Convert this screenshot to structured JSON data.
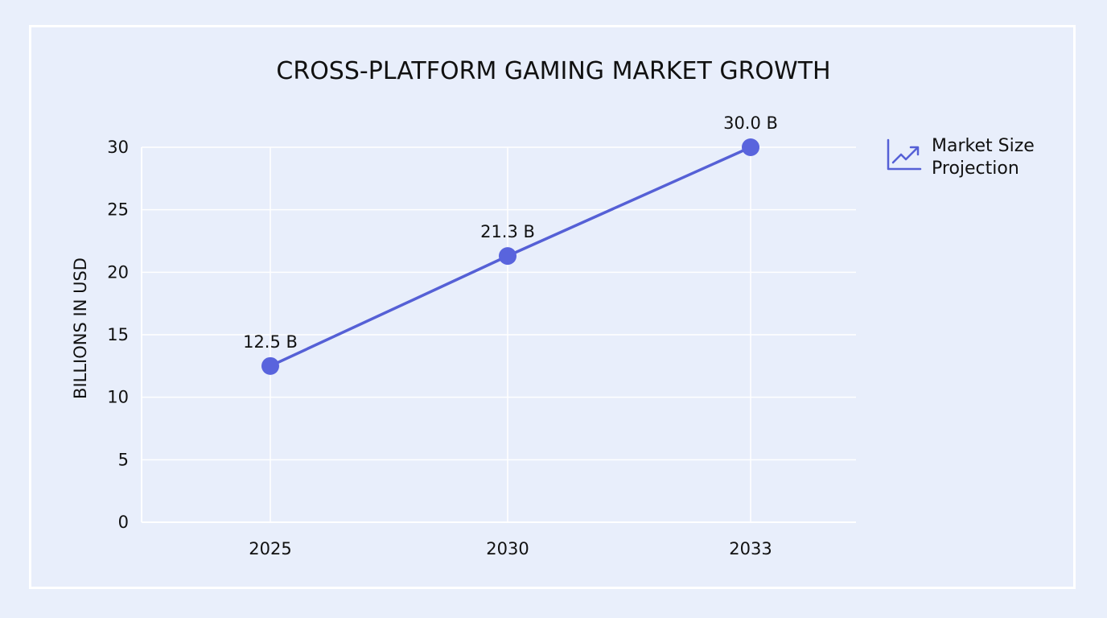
{
  "chart_data": {
    "type": "line",
    "title": "CROSS-PLATFORM GAMING MARKET GROWTH",
    "xlabel": "",
    "ylabel": "BILLIONS IN USD",
    "categories": [
      "2025",
      "2030",
      "2033"
    ],
    "x": [
      2025,
      2030,
      2033
    ],
    "series": [
      {
        "name": "Market Size Projection",
        "values": [
          12.5,
          21.3,
          30.0
        ],
        "labels": [
          "12.5 B",
          "21.3 B",
          "30.0 B"
        ],
        "color": "#5560d6"
      }
    ],
    "yticks": [
      0,
      5,
      10,
      15,
      20,
      25,
      30
    ],
    "ytick_labels": [
      "0",
      "5",
      "10",
      "15",
      "20",
      "25",
      "30"
    ],
    "ylim": [
      0,
      30
    ],
    "grid": true,
    "legend_position": "right"
  },
  "legend": {
    "icon": "trending-up-icon",
    "label": "Market Size Projection"
  },
  "colors": {
    "background": "#e9effb",
    "grid": "#ffffff",
    "line": "#5560d6",
    "marker": "#5964dd"
  }
}
